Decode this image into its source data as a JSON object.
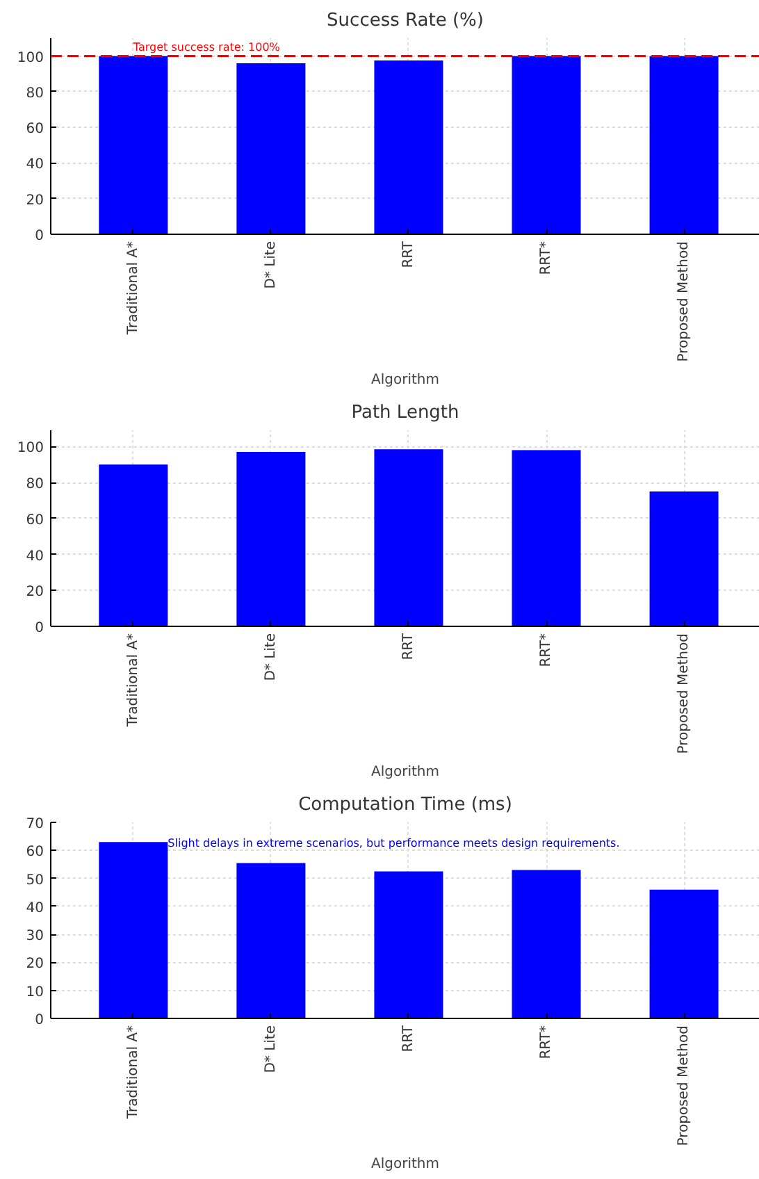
{
  "chart_data": [
    {
      "type": "bar",
      "title": "Success Rate (%)",
      "xlabel": "Algorithm",
      "categories": [
        "Traditional A*",
        "D* Lite",
        "RRT",
        "RRT*",
        "Proposed Method"
      ],
      "values": [
        100,
        96,
        97.5,
        100,
        100
      ],
      "color": "#0000ff",
      "ylim": [
        0,
        110
      ],
      "yticks": [
        0,
        20,
        40,
        60,
        80,
        100
      ],
      "grid": true,
      "ref_lines": [
        {
          "axis": "y",
          "value": 100,
          "label": "Target success rate: 100%",
          "color": "#ff0000",
          "line_style": "dashed"
        }
      ]
    },
    {
      "type": "bar",
      "title": "Path Length",
      "xlabel": "Algorithm",
      "categories": [
        "Traditional A*",
        "D* Lite",
        "RRT",
        "RRT*",
        "Proposed Method"
      ],
      "values": [
        90,
        97,
        98.5,
        98,
        75
      ],
      "color": "#0000ff",
      "ylim": [
        0,
        109
      ],
      "yticks": [
        0,
        20,
        40,
        60,
        80,
        100
      ],
      "grid": true
    },
    {
      "type": "bar",
      "title": "Computation Time (ms)",
      "xlabel": "Algorithm",
      "categories": [
        "Traditional A*",
        "D* Lite",
        "RRT",
        "RRT*",
        "Proposed Method"
      ],
      "values": [
        63,
        55.5,
        52.5,
        53,
        46
      ],
      "color": "#0000ff",
      "ylim": [
        0,
        70
      ],
      "yticks": [
        0,
        10,
        20,
        30,
        40,
        50,
        60,
        70
      ],
      "grid": true,
      "annotations": [
        "Slight delays in extreme scenarios, but performance meets design requirements."
      ]
    }
  ]
}
